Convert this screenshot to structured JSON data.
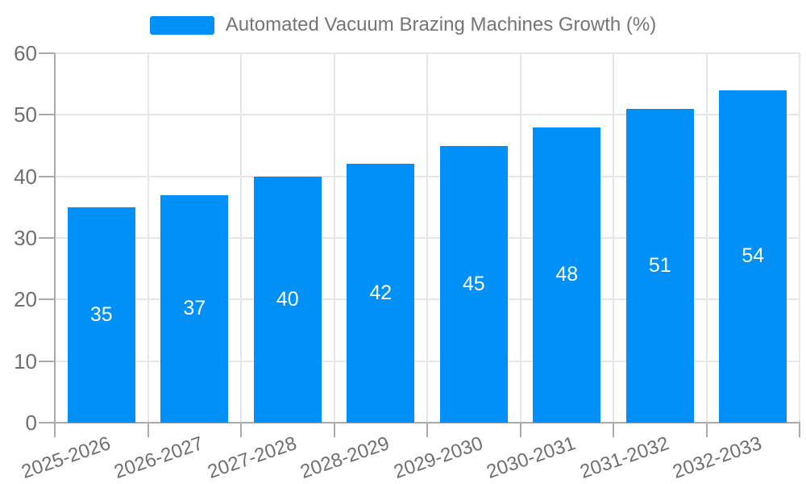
{
  "chart_data": {
    "type": "bar",
    "title": "Automated Vacuum Brazing Machines Growth (%)",
    "categories": [
      "2025-2026",
      "2026-2027",
      "2027-2028",
      "2028-2029",
      "2029-2030",
      "2030-2031",
      "2031-2032",
      "2032-2033"
    ],
    "series": [
      {
        "name": "Automated Vacuum Brazing Machines Growth (%)",
        "values": [
          35,
          37,
          40,
          42,
          45,
          48,
          51,
          54
        ]
      }
    ],
    "xlabel": "",
    "ylabel": "",
    "ylim": [
      0,
      60
    ],
    "yticks": [
      0,
      10,
      20,
      30,
      40,
      50,
      60
    ],
    "grid": true,
    "legend_position": "top",
    "bar_labels_inside": true
  },
  "legend": {
    "label": "Automated Vacuum Brazing Machines Growth (%)"
  },
  "colors": {
    "bar": "#0190f8",
    "grid": "#e6e6e6",
    "axis": "#aaaaaa",
    "tick_text": "#6f6f6f",
    "bar_label": "#ffffff",
    "background": "#ffffff"
  }
}
